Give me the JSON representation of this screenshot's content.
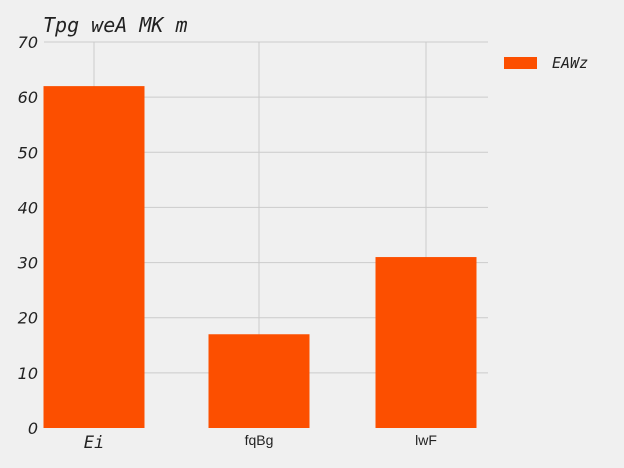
{
  "chart_data": {
    "type": "bar",
    "title": "Tpg weA MK  m",
    "categories": [
      "Ei",
      "fqBg",
      "lwF"
    ],
    "series": [
      {
        "name": "EAWz",
        "values": [
          62,
          17,
          31
        ],
        "color": "#fc4f00"
      }
    ],
    "xlabel": "",
    "ylabel": "",
    "ylim": [
      0,
      70
    ],
    "yticks": [
      0,
      10,
      20,
      30,
      40,
      50,
      60,
      70
    ],
    "grid": true,
    "legend": "top-right"
  }
}
